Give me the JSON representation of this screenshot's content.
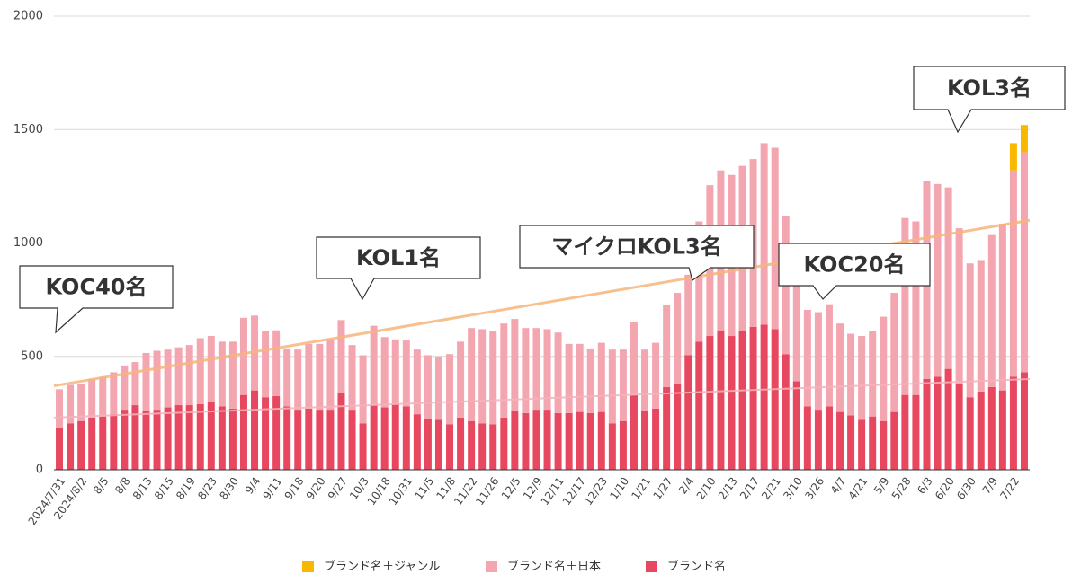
{
  "chart_data": {
    "type": "stacked_bar",
    "categories": [
      "2024/7/31",
      null,
      "2024/8/2",
      null,
      "8/5",
      null,
      "8/8",
      null,
      "8/13",
      null,
      "8/15",
      null,
      "8/19",
      null,
      "8/23",
      null,
      "8/30",
      null,
      "9/4",
      null,
      "9/11",
      null,
      "9/18",
      null,
      "9/20",
      null,
      "9/27",
      null,
      "10/3",
      null,
      "10/18",
      null,
      "10/31",
      null,
      "11/5",
      null,
      "11/8",
      null,
      "11/22",
      null,
      "11/26",
      null,
      "12/5",
      null,
      "12/9",
      null,
      "12/11",
      null,
      "12/17",
      null,
      "12/23",
      null,
      "1/10",
      null,
      "1/21",
      null,
      "1/27",
      null,
      "2/4",
      null,
      "2/10",
      null,
      "2/13",
      null,
      "2/17",
      null,
      "2/21",
      null,
      "3/10",
      null,
      "3/26",
      null,
      "4/7",
      null,
      "4/21",
      null,
      "5/9",
      null,
      "5/28",
      null,
      "6/3",
      null,
      "6/20",
      null,
      "6/30",
      null,
      "7/9",
      null,
      "7/22",
      null
    ],
    "series": [
      {
        "name": "ブランド名",
        "color": "#e8485f",
        "values": [
          185,
          205,
          215,
          230,
          235,
          245,
          265,
          285,
          260,
          265,
          275,
          285,
          285,
          290,
          300,
          280,
          270,
          330,
          350,
          320,
          325,
          280,
          265,
          270,
          265,
          265,
          340,
          265,
          205,
          285,
          275,
          290,
          280,
          245,
          225,
          220,
          200,
          230,
          215,
          205,
          200,
          230,
          260,
          250,
          265,
          265,
          250,
          250,
          255,
          250,
          255,
          205,
          215,
          330,
          260,
          270,
          365,
          380,
          505,
          565,
          590,
          615,
          590,
          615,
          630,
          640,
          620,
          510,
          390,
          280,
          265,
          280,
          255,
          240,
          220,
          235,
          215,
          255,
          330,
          330,
          400,
          410,
          445,
          380,
          320,
          345,
          365,
          350,
          410,
          430
        ]
      },
      {
        "name": "ブランド名＋日本",
        "color": "#f4a6b0",
        "values": [
          170,
          170,
          165,
          170,
          175,
          185,
          195,
          190,
          255,
          260,
          255,
          255,
          265,
          290,
          290,
          285,
          295,
          340,
          330,
          290,
          290,
          255,
          265,
          285,
          290,
          310,
          320,
          285,
          300,
          350,
          310,
          285,
          290,
          285,
          280,
          280,
          310,
          335,
          410,
          415,
          410,
          415,
          405,
          375,
          360,
          355,
          355,
          305,
          300,
          285,
          305,
          325,
          315,
          320,
          270,
          290,
          360,
          400,
          355,
          530,
          665,
          705,
          710,
          725,
          740,
          800,
          800,
          610,
          420,
          425,
          430,
          450,
          390,
          360,
          370,
          375,
          460,
          525,
          780,
          765,
          875,
          850,
          800,
          685,
          590,
          580,
          670,
          735,
          910,
          970
        ]
      },
      {
        "name": "ブランド名＋ジャンル",
        "color": "#f9b800",
        "values": [
          0,
          0,
          0,
          0,
          0,
          0,
          0,
          0,
          0,
          0,
          0,
          0,
          0,
          0,
          0,
          0,
          0,
          0,
          0,
          0,
          0,
          0,
          0,
          0,
          0,
          0,
          0,
          0,
          0,
          0,
          0,
          0,
          0,
          0,
          0,
          0,
          0,
          0,
          0,
          0,
          0,
          0,
          0,
          0,
          0,
          0,
          0,
          0,
          0,
          0,
          0,
          0,
          0,
          0,
          0,
          0,
          0,
          0,
          0,
          0,
          0,
          0,
          0,
          0,
          0,
          0,
          0,
          0,
          0,
          0,
          0,
          0,
          0,
          0,
          0,
          0,
          0,
          0,
          0,
          0,
          0,
          0,
          0,
          0,
          0,
          0,
          0,
          0,
          120,
          120
        ]
      }
    ],
    "trend_lines": [
      {
        "color": "#f7b57c",
        "values": [
          370,
          1100
        ]
      },
      {
        "color": "#f4b3bb",
        "values": [
          230,
          400
        ]
      }
    ],
    "annotations": [
      "KOC40名",
      "KOL1名",
      "マイクロKOL3名",
      "KOC20名",
      "KOL3名"
    ],
    "ylim": [
      0,
      2000
    ],
    "yticks": [
      0,
      500,
      1000,
      1500,
      2000
    ],
    "grid": true,
    "legend": "bottom"
  }
}
